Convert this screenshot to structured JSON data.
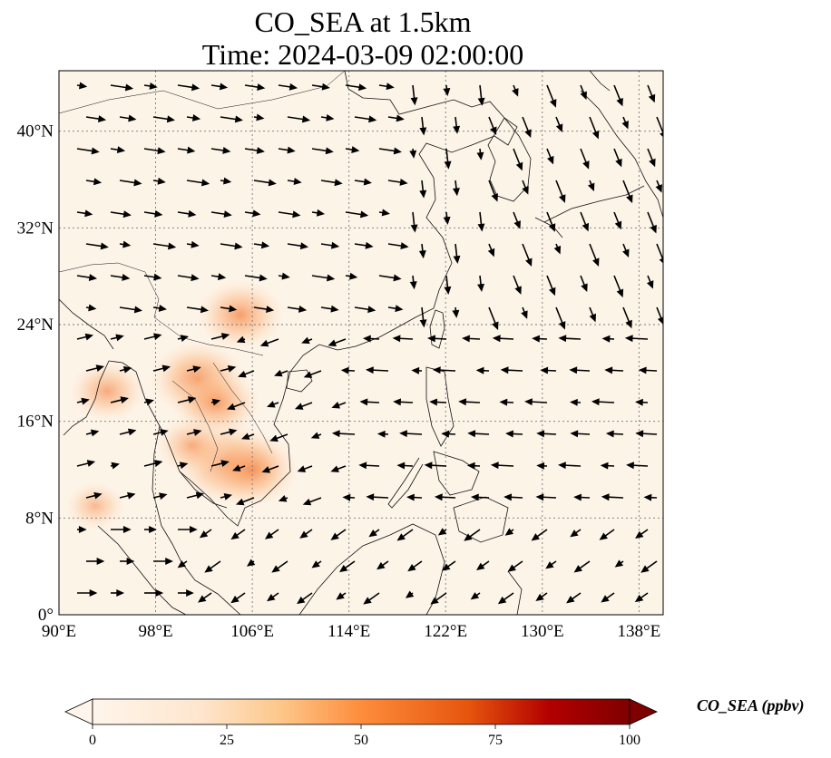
{
  "title": {
    "line1": "CO_SEA at 1.5km",
    "line2": "Time: 2024-03-09 02:00:00"
  },
  "map": {
    "lon_range": [
      90,
      140
    ],
    "lat_range": [
      0,
      45
    ],
    "lon_ticks": [
      "90°E",
      "98°E",
      "106°E",
      "114°E",
      "122°E",
      "130°E",
      "138°E"
    ],
    "lon_tick_values": [
      90,
      98,
      106,
      114,
      122,
      130,
      138
    ],
    "lat_ticks": [
      "0°",
      "8°N",
      "16°N",
      "24°N",
      "32°N",
      "40°N"
    ],
    "lat_tick_values": [
      0,
      8,
      16,
      24,
      32,
      40
    ],
    "background_color": "#fdf4e8",
    "gridlines": "dotted"
  },
  "colorbar": {
    "label": "CO_SEA (ppbv)",
    "ticks": [
      "0",
      "25",
      "50",
      "75",
      "100"
    ],
    "tick_values": [
      0,
      25,
      50,
      75,
      100
    ],
    "colors": [
      "#fff5eb",
      "#fdd9b2",
      "#fdae6b",
      "#f16913",
      "#c42e03",
      "#7f0000"
    ],
    "extend": "both"
  },
  "plumes": [
    {
      "lon": 101.5,
      "lat": 19.5,
      "value": 40
    },
    {
      "lon": 103.0,
      "lat": 17.5,
      "value": 35
    },
    {
      "lon": 104.0,
      "lat": 12.5,
      "value": 45
    },
    {
      "lon": 106.0,
      "lat": 12.0,
      "value": 38
    },
    {
      "lon": 105.0,
      "lat": 24.8,
      "value": 35
    },
    {
      "lon": 94.0,
      "lat": 18.5,
      "value": 28
    },
    {
      "lon": 101.0,
      "lat": 14.0,
      "value": 25
    },
    {
      "lon": 93.0,
      "lat": 9.0,
      "value": 18
    }
  ]
}
